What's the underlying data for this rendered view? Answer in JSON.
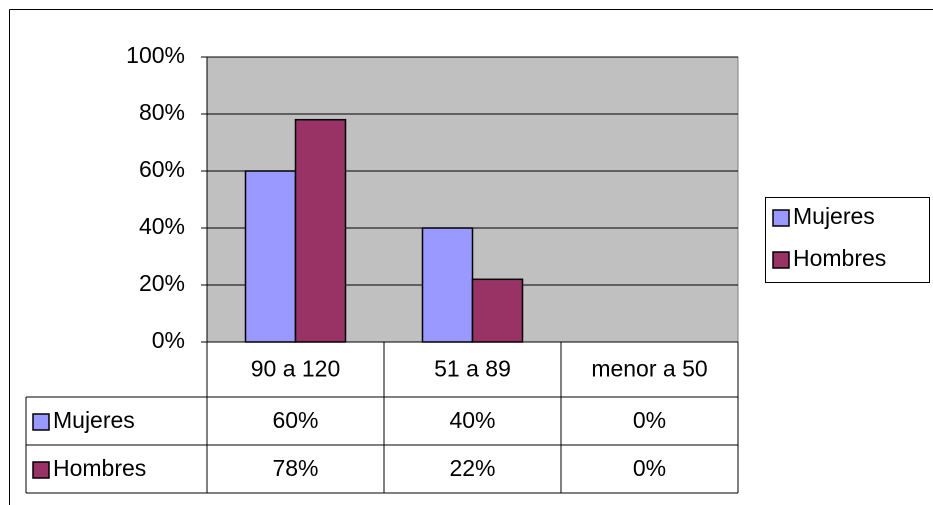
{
  "chart_data": {
    "type": "bar",
    "categories": [
      "90 a 120",
      "51 a 89",
      "menor a 50"
    ],
    "series": [
      {
        "name": "Mujeres",
        "color": "#9999ff",
        "values": [
          60,
          40,
          0
        ],
        "value_labels": [
          "60%",
          "40%",
          "0%"
        ]
      },
      {
        "name": "Hombres",
        "color": "#993366",
        "values": [
          78,
          22,
          0
        ],
        "value_labels": [
          "78%",
          "22%",
          "0%"
        ]
      }
    ],
    "ylim": [
      0,
      100
    ],
    "yticks": [
      {
        "value": 0,
        "label": "0%"
      },
      {
        "value": 20,
        "label": "20%"
      },
      {
        "value": 40,
        "label": "40%"
      },
      {
        "value": 60,
        "label": "60%"
      },
      {
        "value": 80,
        "label": "80%"
      },
      {
        "value": 100,
        "label": "100%"
      }
    ],
    "grid": true,
    "legend": "right",
    "plot_background": "#c0c0c0"
  }
}
